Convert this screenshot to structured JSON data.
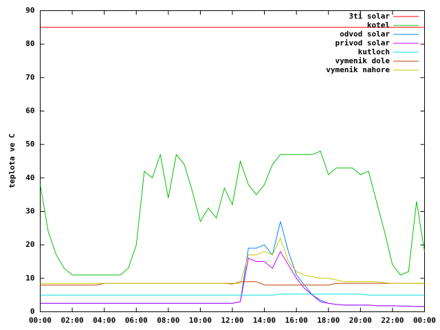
{
  "chart_data": {
    "type": "line",
    "y_label": "teplota ve C",
    "x": [
      0,
      0.5,
      1,
      1.5,
      2,
      2.5,
      3,
      3.5,
      4,
      4.5,
      5,
      5.5,
      6,
      6.5,
      7,
      7.5,
      8,
      8.5,
      9,
      9.5,
      10,
      10.5,
      11,
      11.5,
      12,
      12.5,
      13,
      13.5,
      14,
      14.5,
      15,
      15.5,
      16,
      16.5,
      17,
      17.5,
      18,
      18.5,
      19,
      19.5,
      20,
      20.5,
      21,
      21.5,
      22,
      22.5,
      23,
      23.5,
      24
    ],
    "xlim": [
      0,
      24
    ],
    "xticks": [
      {
        "value": 0,
        "label": "00:00"
      },
      {
        "value": 2,
        "label": "02:00"
      },
      {
        "value": 4,
        "label": "04:00"
      },
      {
        "value": 6,
        "label": "06:00"
      },
      {
        "value": 8,
        "label": "08:00"
      },
      {
        "value": 10,
        "label": "10:00"
      },
      {
        "value": 12,
        "label": "12:00"
      },
      {
        "value": 14,
        "label": "14:00"
      },
      {
        "value": 16,
        "label": "16:00"
      },
      {
        "value": 18,
        "label": "18:00"
      },
      {
        "value": 20,
        "label": "20:00"
      },
      {
        "value": 22,
        "label": "22:00"
      },
      {
        "value": 24,
        "label": "00:00"
      }
    ],
    "ylim": [
      0,
      90
    ],
    "yticks": [
      0,
      10,
      20,
      30,
      40,
      50,
      60,
      70,
      80,
      90
    ],
    "legend": "top right",
    "series": [
      {
        "name": "3ti solar",
        "color": "#ff0000",
        "values": [
          85,
          85,
          85,
          85,
          85,
          85,
          85,
          85,
          85,
          85,
          85,
          85,
          85,
          85,
          85,
          85,
          85,
          85,
          85,
          85,
          85,
          85,
          85,
          85,
          85,
          85,
          85,
          85,
          85,
          85,
          85,
          85,
          85,
          85,
          85,
          85,
          85,
          85,
          85,
          85,
          85,
          85,
          85,
          85,
          85,
          85,
          85,
          85,
          85
        ]
      },
      {
        "name": "kotel",
        "color": "#00c000",
        "values": [
          38,
          24,
          17,
          13,
          11,
          11,
          11,
          11,
          11,
          11,
          11,
          13,
          20,
          42,
          40,
          47,
          34,
          47,
          44,
          36,
          27,
          31,
          28,
          37,
          32,
          45,
          38,
          35,
          38,
          44,
          47,
          47,
          47,
          47,
          47,
          48,
          41,
          43,
          43,
          43,
          41,
          42,
          33,
          24,
          14,
          11,
          12,
          33,
          18
        ]
      },
      {
        "name": "odvod solar",
        "color": "#0080ff",
        "values": [
          2.5,
          2.5,
          2.5,
          2.5,
          2.5,
          2.5,
          2.5,
          2.5,
          2.5,
          2.5,
          2.5,
          2.5,
          2.5,
          2.5,
          2.5,
          2.5,
          2.5,
          2.5,
          2.5,
          2.5,
          2.5,
          2.5,
          2.5,
          2.5,
          2.5,
          3,
          19,
          19,
          20,
          17,
          27,
          18,
          11,
          8,
          5,
          3.5,
          2.5,
          2.2,
          2,
          2,
          2,
          2,
          1.8,
          1.8,
          1.8,
          1.7,
          1.7,
          1.6,
          1.6
        ]
      },
      {
        "name": "privod solar",
        "color": "#c000ff",
        "values": [
          2.5,
          2.5,
          2.5,
          2.5,
          2.5,
          2.5,
          2.5,
          2.5,
          2.5,
          2.5,
          2.5,
          2.5,
          2.5,
          2.5,
          2.5,
          2.5,
          2.5,
          2.5,
          2.5,
          2.5,
          2.5,
          2.5,
          2.5,
          2.5,
          2.5,
          3,
          16,
          15,
          15,
          13,
          18,
          14,
          10,
          7,
          5,
          3,
          2.5,
          2.2,
          2,
          2,
          2,
          2,
          1.8,
          1.8,
          1.8,
          1.7,
          1.7,
          1.6,
          1.6
        ]
      },
      {
        "name": "kutloch",
        "color": "#00e0e0",
        "values": [
          5,
          5,
          5,
          5,
          5,
          5,
          5,
          5,
          5,
          5,
          5,
          5,
          5,
          5,
          5,
          5,
          5,
          5,
          5,
          5,
          5,
          5,
          5,
          5,
          5,
          5,
          5,
          5,
          5,
          5,
          5.3,
          5.3,
          5.3,
          5.3,
          5.3,
          5.3,
          5.3,
          5.3,
          5.3,
          5.3,
          5.3,
          5,
          5,
          5,
          5,
          5,
          5,
          5,
          5
        ]
      },
      {
        "name": "vymenik dole",
        "color": "#c04000",
        "values": [
          8,
          8,
          8,
          8,
          8,
          8,
          8,
          8,
          8.5,
          8.5,
          8.5,
          8.5,
          8.5,
          8.5,
          8.5,
          8.5,
          8.5,
          8.5,
          8.5,
          8.5,
          8.5,
          8.5,
          8.5,
          8.5,
          8.3,
          9,
          9,
          9,
          8,
          8,
          8,
          8,
          8,
          8,
          8,
          8,
          8,
          8.5,
          8.5,
          8.5,
          8.5,
          8.5,
          8.5,
          8.5,
          8.5,
          8.5,
          8.5,
          8.5,
          8.5
        ]
      },
      {
        "name": "vymenik nahore",
        "color": "#c8c800",
        "values": [
          8.5,
          8.5,
          8.5,
          8.5,
          8.5,
          8.5,
          8.5,
          8.5,
          8.5,
          8.5,
          8.5,
          8.5,
          8.5,
          8.5,
          8.5,
          8.5,
          8.5,
          8.5,
          8.5,
          8.5,
          8.5,
          8.5,
          8.5,
          8.5,
          8.5,
          8.5,
          17,
          17,
          18,
          17,
          22,
          15,
          12,
          11,
          10.5,
          10,
          10,
          9.5,
          9,
          9,
          9,
          9,
          9,
          8.7,
          8.5,
          8.5,
          8.5,
          8.5,
          8.5
        ]
      }
    ]
  }
}
